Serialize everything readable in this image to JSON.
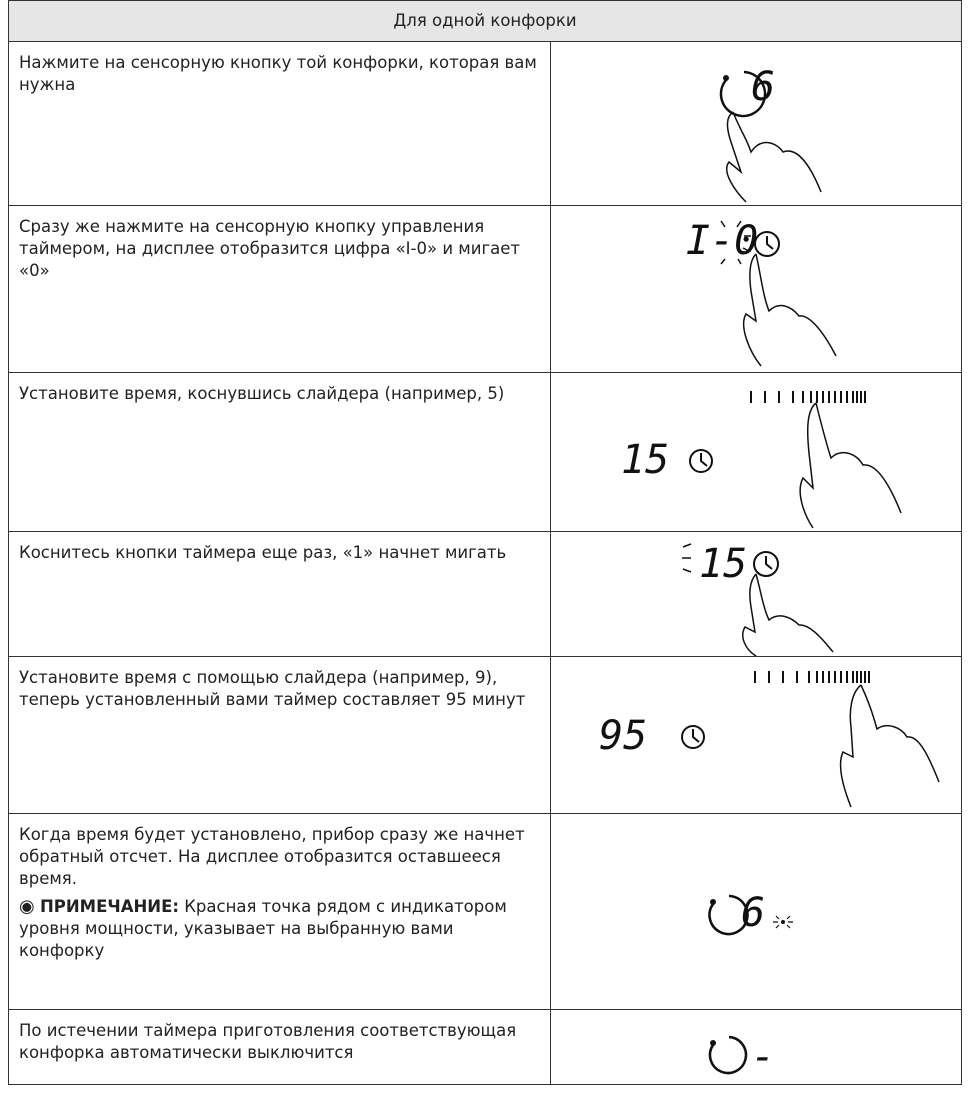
{
  "header": {
    "title": "Для одной конфорки"
  },
  "rows": [
    {
      "text": "Нажмите на сенсорную кнопку той конфорки, которая вам нужна",
      "display": "6"
    },
    {
      "text": "Сразу же нажмите на сенсорную кнопку управления таймером, на дисплее отобразится цифра «I-0» и мигает «0»",
      "display": "I-0"
    },
    {
      "text": "Установите время, коснувшись слайдера (например, 5)",
      "display": "15"
    },
    {
      "text": "Коснитесь кнопки таймера еще раз, «1» начнет мигать",
      "display": "15"
    },
    {
      "text": "Установите время с помощью слайдера (например, 9), теперь установленный вами таймер составляет 95 минут",
      "display": "95"
    },
    {
      "text": "Когда время будет установлено, прибор сразу же начнет обратный отсчет. На дисплее отобразится оставшееся время.",
      "note_label": "ПРИМЕЧАНИЕ:",
      "note_text": "Красная точка рядом с индикатором уровня мощности, указывает на выбранную вами конфорку",
      "display": "6"
    },
    {
      "text": "По истечении таймера приготовления соответствующая конфорка автоматически выключится",
      "display": "-"
    }
  ]
}
